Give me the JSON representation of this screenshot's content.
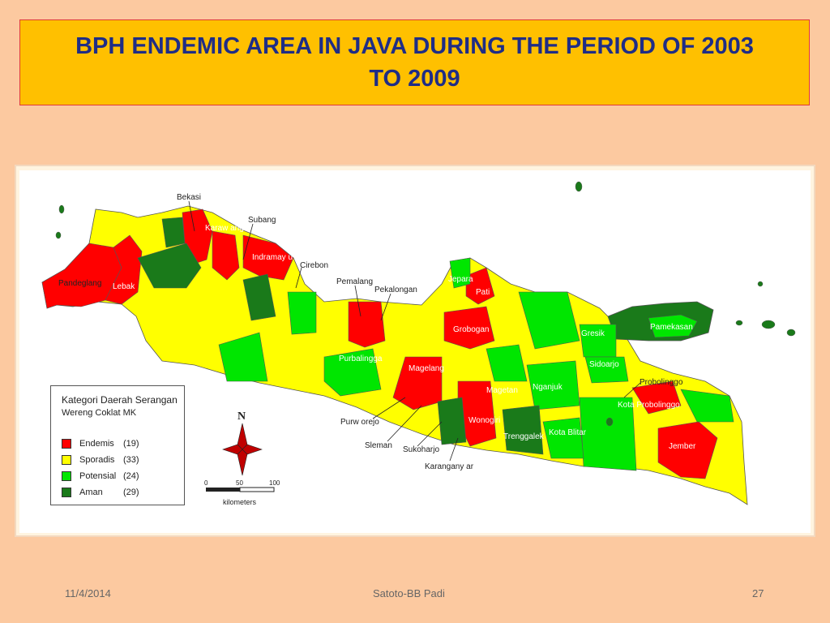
{
  "title": "BPH ENDEMIC AREA IN JAVA DURING THE PERIOD OF 2003 TO 2009",
  "colors": {
    "endemis": "#ff0000",
    "sporadis": "#ffff00",
    "potensial": "#00e600",
    "aman": "#1a7a1a",
    "background": "#fcc9a0",
    "title_bg": "#ffc000",
    "title_text": "#1f2d86"
  },
  "legend": {
    "title": "Kategori Daerah Serangan",
    "subtitle": "Wereng Coklat MK",
    "items": [
      {
        "name": "Endemis",
        "count": "(19)",
        "color": "#ff0000"
      },
      {
        "name": "Sporadis",
        "count": "(33)",
        "color": "#ffff00"
      },
      {
        "name": "Potensial",
        "count": "(24)",
        "color": "#00e600"
      },
      {
        "name": "Aman",
        "count": "(29)",
        "color": "#1a7a1a"
      }
    ]
  },
  "compass": {
    "north": "N"
  },
  "scale": {
    "ticks": [
      "0",
      "50",
      "100"
    ],
    "unit": "kilometers"
  },
  "places": {
    "bekasi": "Bekasi",
    "karawang": "Karaw ang",
    "subang": "Subang",
    "indramayu": "Indramay u",
    "cirebon": "Cirebon",
    "pandeglang": "Pandeglang",
    "lebak": "Lebak",
    "pemalang": "Pemalang",
    "pekalongan": "Pekalongan",
    "jepara": "Jepara",
    "pati": "Pati",
    "grobogan": "Grobogan",
    "purbalingga": "Purbalingga",
    "magelang": "Magelang",
    "purworejo": "Purw orejo",
    "sleman": "Sleman",
    "sukoharjo": "Sukoharjo",
    "karanganyar": "Karangany ar",
    "wonogiri": "Wonogiri",
    "magetan": "Magetan",
    "nganjuk": "Nganjuk",
    "trenggalek": "Trenggalek",
    "kota_blitar": "Kota Blitar",
    "gresik": "Gresik",
    "sidoarjo": "Sidoarjo",
    "pamekasan": "Pamekasan",
    "probolinggo": "Probolinggo",
    "kota_probolinggo": "Kota Probolinggo",
    "jember": "Jember"
  },
  "footer": {
    "date": "11/4/2014",
    "author": "Satoto-BB Padi",
    "page": "27"
  }
}
